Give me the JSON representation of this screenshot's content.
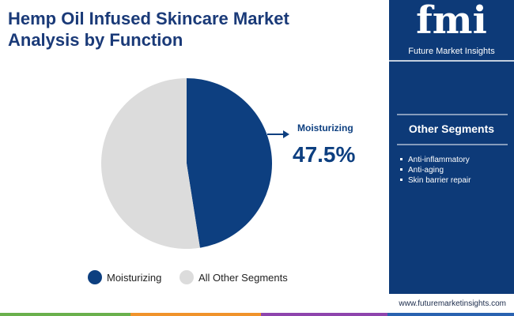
{
  "chart_data": {
    "type": "pie",
    "title": "Hemp Oil Infused Skincare Market Analysis by Function",
    "categories": [
      "Moisturizing",
      "All Other Segments"
    ],
    "values": [
      47.5,
      52.5
    ],
    "value_labels": [
      "47.5%",
      null
    ],
    "colors": [
      "#0d3f80",
      "#dcdcdc"
    ]
  },
  "sidebar": {
    "logo": "fmi",
    "brand": "Future Market Insights",
    "heading": "Other Segments",
    "items": [
      "Anti-inflammatory",
      "Anti-aging",
      "Skin barrier repair"
    ],
    "url": "www.futuremarketinsights.com"
  }
}
